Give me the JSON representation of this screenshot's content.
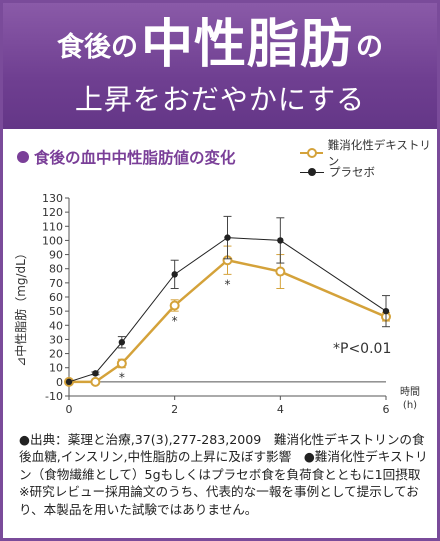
{
  "header": {
    "prefix": "食後の",
    "main": "中性脂肪",
    "suffix": "の",
    "line2": "上昇をおだやかにする"
  },
  "colors": {
    "purple": "#7a3f98",
    "gold": "#d4a23a",
    "black": "#222222"
  },
  "chart_data": {
    "type": "line",
    "title": "食後の血中中性脂肪値の変化",
    "ylabel": "⊿中性脂肪（mg/dL）",
    "xlabel": "時間\n(h)",
    "xlabel_top": "時間",
    "xlabel_bottom": "(h)",
    "xlim": [
      0,
      6
    ],
    "ylim": [
      -10,
      130
    ],
    "xticks": [
      0,
      2,
      4,
      6
    ],
    "yticks": [
      -10,
      0,
      10,
      20,
      30,
      40,
      50,
      60,
      70,
      80,
      90,
      100,
      110,
      120,
      130
    ],
    "legend_position": "top-right",
    "series": [
      {
        "name": "難消化性デキストリン",
        "marker": "open-circle",
        "color": "#d4a23a",
        "x": [
          0,
          0.5,
          1,
          2,
          3,
          4,
          6
        ],
        "y": [
          0,
          0,
          13,
          54,
          86,
          78,
          46
        ],
        "err": [
          0,
          0,
          3,
          4,
          10,
          12,
          3
        ],
        "significant": [
          false,
          false,
          true,
          true,
          true,
          false,
          false
        ]
      },
      {
        "name": "プラセボ",
        "marker": "filled-circle",
        "color": "#222222",
        "x": [
          0,
          0.5,
          1,
          2,
          3,
          4,
          6
        ],
        "y": [
          0,
          6,
          28,
          76,
          102,
          100,
          50
        ],
        "err": [
          0,
          1,
          4,
          10,
          15,
          16,
          11
        ]
      }
    ],
    "significance_marker": "*",
    "annotation": "*P<0.01"
  },
  "notes": {
    "para1": "●出典：薬理と治療,37(3),277-283,2009　難消化性デキストリンの食後血糖,インスリン,中性脂肪の上昇に及ぼす影響　●難消化性デキストリン（食物繊維として）5gもしくはプラセボ食を負荷食とともに1回摂取　※研究レビュー採用論文のうち、代表的な一報を事例として提示しており、本製品を用いた試験ではありません。"
  }
}
